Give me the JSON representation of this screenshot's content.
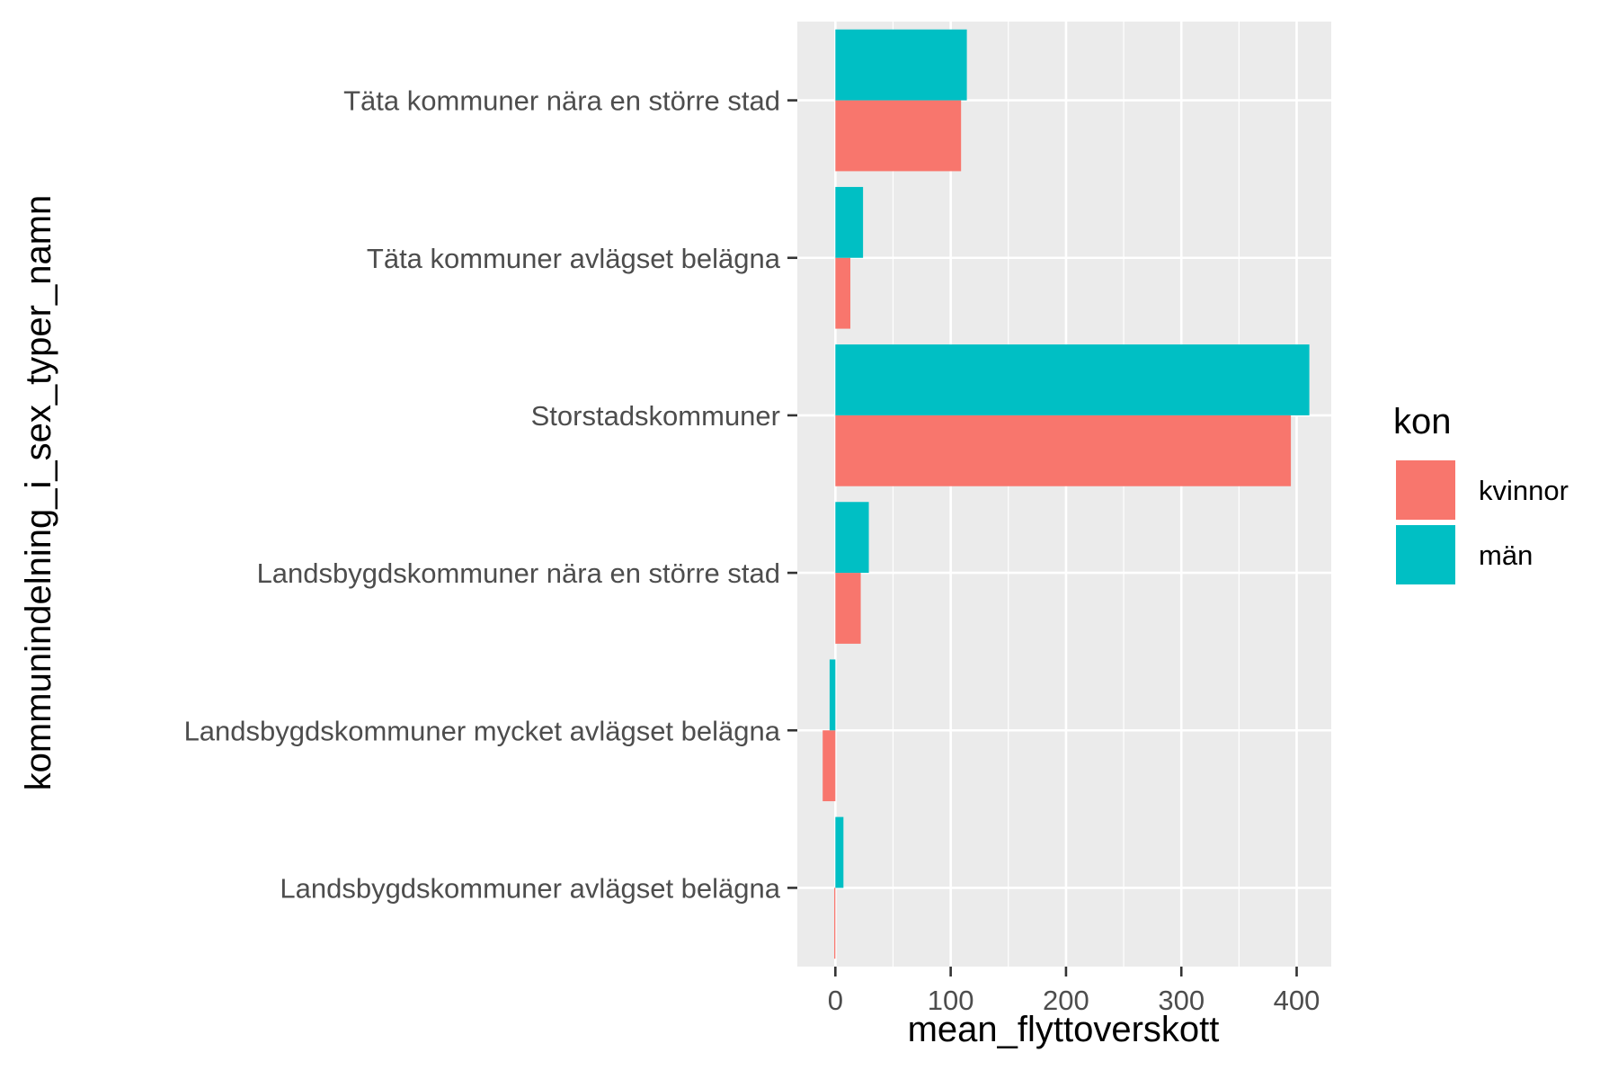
{
  "chart_data": {
    "type": "bar",
    "orientation": "horizontal",
    "xlabel": "mean_flyttoverskott",
    "ylabel": "kommunindelning_i_sex_typer_namn",
    "xlim": [
      -33,
      430
    ],
    "x_ticks": [
      0,
      100,
      200,
      300,
      400
    ],
    "x_tick_labels": [
      "0",
      "100",
      "200",
      "300",
      "400"
    ],
    "categories": [
      "Täta kommuner nära en större stad",
      "Täta kommuner avlägset belägna",
      "Storstadskommuner",
      "Landsbygdskommuner nära en större stad",
      "Landsbygdskommuner mycket avlägset belägna",
      "Landsbygdskommuner avlägset belägna"
    ],
    "series": [
      {
        "name": "kvinnor",
        "color": "#F8766D",
        "values": [
          109,
          13,
          395,
          22,
          -11,
          -1
        ]
      },
      {
        "name": "män",
        "color": "#00BFC4",
        "values": [
          114,
          24,
          411,
          29,
          -5,
          7
        ]
      }
    ],
    "legend": {
      "title": "kon",
      "placement": "right",
      "entries": [
        {
          "label": "kvinnor",
          "color": "#F8766D"
        },
        {
          "label": "män",
          "color": "#00BFC4"
        }
      ]
    },
    "grid": true,
    "panel_background": "#EBEBEB",
    "grid_color": "#FFFFFF"
  }
}
